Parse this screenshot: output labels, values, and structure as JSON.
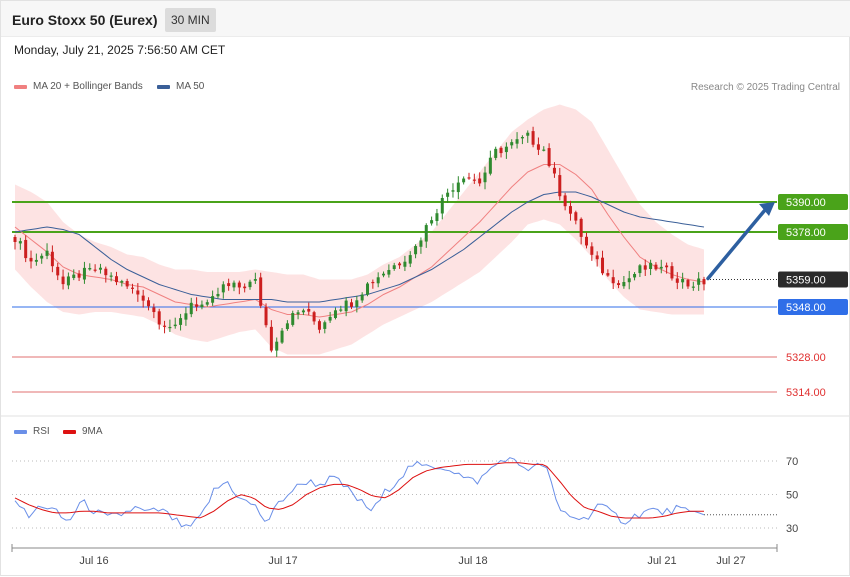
{
  "header": {
    "title": "Euro Stoxx 50 (Eurex)",
    "timeframe": "30 MIN",
    "datetime": "Monday, July 21, 2025 7:56:50 AM CET"
  },
  "legend": {
    "ma20_label": "MA 20 + Bollinger Bands",
    "ma50_label": "MA 50",
    "rsi_label": "RSI",
    "rsi9_label": "9MA",
    "credit": "Research © 2025 Trading Central"
  },
  "colors": {
    "ma20": "#f08080",
    "ma50": "#3a5f98",
    "band_fill": "#fde0e0",
    "bull": "#2f8a2f",
    "bear": "#cc1f1f",
    "resistance": "#4aa31a",
    "pivot": "#2f6ee8",
    "support": "#e07070",
    "current": "#2b2b2b",
    "rsi": "#6a8fe8",
    "rsi9": "#dd1111",
    "arrow": "#2d5fa0"
  },
  "chart_data": [
    {
      "type": "candlestick",
      "x_tick_labels": [
        "Jul 16",
        "Jul 17",
        "Jul 18",
        "Jul 21",
        "Jul 27"
      ],
      "levels": [
        {
          "label": "5390.00",
          "value": 5390,
          "kind": "resistance"
        },
        {
          "label": "5378.00",
          "value": 5378,
          "kind": "resistance"
        },
        {
          "label": "5359.00",
          "value": 5359,
          "kind": "current"
        },
        {
          "label": "5348.00",
          "value": 5348,
          "kind": "pivot"
        },
        {
          "label": "5328.00",
          "value": 5328,
          "kind": "support"
        },
        {
          "label": "5314.00",
          "value": 5314,
          "kind": "support"
        }
      ],
      "close_path": [
        5376,
        5366,
        5370,
        5357,
        5361,
        5363,
        5360,
        5356,
        5352,
        5343,
        5339,
        5350,
        5348,
        5356,
        5356,
        5358,
        5332,
        5343,
        5347,
        5340,
        5348,
        5350,
        5357,
        5362,
        5366,
        5372,
        5384,
        5394,
        5401,
        5398,
        5410,
        5413,
        5416,
        5411,
        5394,
        5381,
        5368,
        5360,
        5358,
        5363,
        5364,
        5361,
        5357,
        5358
      ],
      "ma20_path": [
        5380,
        5375,
        5370,
        5364,
        5361,
        5360,
        5359,
        5357,
        5356,
        5353,
        5350,
        5349,
        5348,
        5349,
        5350,
        5351,
        5347,
        5345,
        5345,
        5344,
        5345,
        5346,
        5349,
        5353,
        5356,
        5360,
        5364,
        5370,
        5376,
        5382,
        5389,
        5396,
        5402,
        5405,
        5405,
        5401,
        5395,
        5385,
        5376,
        5368,
        5364,
        5361,
        5359,
        5358
      ],
      "ma50_path": [
        5378,
        5379,
        5380,
        5379,
        5377,
        5372,
        5367,
        5363,
        5360,
        5357,
        5355,
        5353,
        5352,
        5351,
        5351,
        5351,
        5351,
        5350,
        5350,
        5350,
        5351,
        5352,
        5353,
        5355,
        5357,
        5360,
        5363,
        5367,
        5371,
        5376,
        5381,
        5386,
        5390,
        5393,
        5394,
        5394,
        5392,
        5389,
        5386,
        5384,
        5383,
        5382,
        5381,
        5380
      ],
      "band_width_path": [
        17,
        19,
        20,
        18,
        16,
        14,
        13,
        12,
        12,
        12,
        13,
        14,
        14,
        13,
        12,
        12,
        15,
        16,
        16,
        15,
        14,
        13,
        12,
        12,
        12,
        13,
        14,
        16,
        18,
        20,
        21,
        22,
        21,
        22,
        24,
        26,
        27,
        26,
        24,
        21,
        18,
        16,
        14,
        13
      ],
      "projection": {
        "from": 5359,
        "to": 5390
      }
    },
    {
      "type": "line",
      "name_rsi": "RSI",
      "name_ma": "9MA",
      "y_ticks": [
        70,
        50,
        30
      ],
      "rsi_path": [
        48,
        36,
        44,
        40,
        33,
        46,
        40,
        36,
        38,
        42,
        39,
        41,
        35,
        29,
        36,
        52,
        58,
        47,
        44,
        33,
        46,
        53,
        58,
        56,
        60,
        54,
        46,
        40,
        52,
        60,
        68,
        66,
        67,
        65,
        59,
        58,
        66,
        72,
        68,
        65,
        69,
        41,
        37,
        35,
        44,
        39,
        34,
        38,
        41,
        39,
        42,
        38,
        40
      ],
      "rsi9_path": [
        48,
        44,
        41,
        39,
        39,
        40,
        40,
        39,
        39,
        39,
        39,
        39,
        38,
        37,
        36,
        40,
        46,
        50,
        48,
        42,
        41,
        44,
        50,
        54,
        56,
        56,
        53,
        49,
        48,
        53,
        60,
        64,
        66,
        67,
        68,
        68,
        68,
        69,
        69,
        68,
        68,
        59,
        49,
        42,
        40,
        37,
        36,
        36,
        36,
        37,
        39,
        40,
        40
      ]
    }
  ]
}
